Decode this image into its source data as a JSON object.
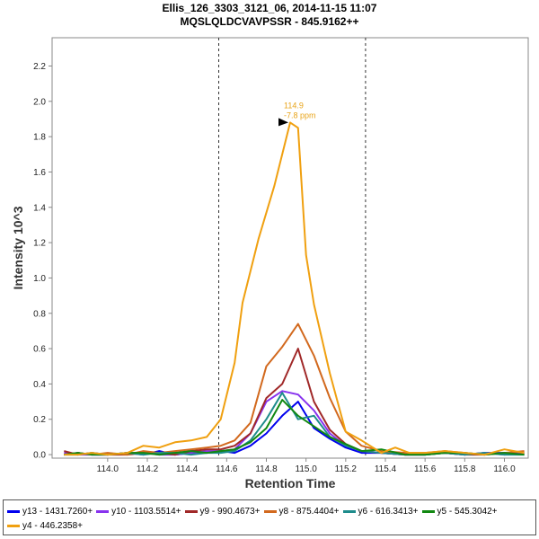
{
  "chart_data": {
    "type": "line",
    "title": "Ellis_126_3303_3121_06, 2014-11-15 11:07",
    "subtitle": "MQSLQLDCVAVPSSR - 845.9162++",
    "xlabel": "Retention Time",
    "ylabel": "Intensity 10^3",
    "xlim": [
      113.72,
      116.12
    ],
    "ylim": [
      -0.02,
      2.36
    ],
    "xticks": [
      "114.0",
      "114.2",
      "114.4",
      "114.6",
      "114.8",
      "115.0",
      "115.2",
      "115.4",
      "115.6",
      "115.8",
      "116.0"
    ],
    "yticks": [
      "0.0",
      "0.2",
      "0.4",
      "0.6",
      "0.8",
      "1.0",
      "1.2",
      "1.4",
      "1.6",
      "1.8",
      "2.0",
      "2.2"
    ],
    "grid": false,
    "legend_position": "bottom",
    "integration_bounds": [
      114.56,
      115.3
    ],
    "peak_annotation": {
      "x": 114.92,
      "y": 1.88,
      "rt_label": "114.9",
      "ppm_label": "-7.8 ppm"
    },
    "series": [
      {
        "name": "y13 - 1431.7260+",
        "color": "#0000ee",
        "x": [
          113.78,
          113.85,
          113.92,
          114.0,
          114.1,
          114.18,
          114.26,
          114.34,
          114.42,
          114.5,
          114.57,
          114.64,
          114.72,
          114.8,
          114.88,
          114.96,
          115.04,
          115.12,
          115.2,
          115.28,
          115.38,
          115.5,
          115.6,
          115.7,
          115.8,
          115.9,
          116.0,
          116.1
        ],
        "y": [
          0.0,
          0.01,
          0.0,
          0.0,
          0.01,
          0.0,
          0.02,
          0.0,
          0.01,
          0.01,
          0.02,
          0.01,
          0.05,
          0.12,
          0.22,
          0.3,
          0.15,
          0.09,
          0.04,
          0.01,
          0.01,
          0.0,
          0.0,
          0.01,
          0.0,
          0.01,
          0.01,
          0.01
        ]
      },
      {
        "name": "y10 - 1103.5514+",
        "color": "#8833ee",
        "x": [
          113.78,
          113.85,
          113.92,
          114.0,
          114.1,
          114.18,
          114.26,
          114.34,
          114.42,
          114.5,
          114.57,
          114.64,
          114.72,
          114.8,
          114.88,
          114.96,
          115.04,
          115.12,
          115.2,
          115.28,
          115.38,
          115.5,
          115.6,
          115.7,
          115.8,
          115.9,
          116.0,
          116.1
        ],
        "y": [
          0.01,
          0.0,
          0.0,
          0.0,
          0.01,
          0.01,
          0.0,
          0.0,
          0.01,
          0.02,
          0.02,
          0.03,
          0.12,
          0.3,
          0.36,
          0.34,
          0.25,
          0.12,
          0.05,
          0.02,
          0.01,
          0.0,
          0.01,
          0.01,
          0.0,
          0.01,
          0.0,
          0.01
        ]
      },
      {
        "name": "y9 - 990.4673+",
        "color": "#a02828",
        "x": [
          113.78,
          113.85,
          113.92,
          114.0,
          114.1,
          114.18,
          114.26,
          114.34,
          114.42,
          114.5,
          114.57,
          114.64,
          114.72,
          114.8,
          114.88,
          114.96,
          115.04,
          115.12,
          115.2,
          115.28,
          115.38,
          115.5,
          115.6,
          115.7,
          115.8,
          115.9,
          116.0,
          116.1
        ],
        "y": [
          0.02,
          0.0,
          0.01,
          0.0,
          0.0,
          0.01,
          0.01,
          0.0,
          0.02,
          0.03,
          0.03,
          0.05,
          0.12,
          0.32,
          0.4,
          0.6,
          0.3,
          0.14,
          0.06,
          0.02,
          0.01,
          0.0,
          0.0,
          0.01,
          0.0,
          0.0,
          0.01,
          0.0
        ]
      },
      {
        "name": "y8 - 875.4404+",
        "color": "#d2691e",
        "x": [
          113.78,
          113.85,
          113.92,
          114.0,
          114.1,
          114.18,
          114.26,
          114.34,
          114.42,
          114.5,
          114.57,
          114.64,
          114.72,
          114.8,
          114.88,
          114.96,
          115.04,
          115.12,
          115.2,
          115.28,
          115.38,
          115.5,
          115.6,
          115.7,
          115.8,
          115.9,
          116.0,
          116.1
        ],
        "y": [
          0.0,
          0.01,
          0.0,
          0.01,
          0.0,
          0.02,
          0.01,
          0.02,
          0.03,
          0.04,
          0.05,
          0.08,
          0.18,
          0.5,
          0.61,
          0.74,
          0.56,
          0.32,
          0.13,
          0.05,
          0.02,
          0.01,
          0.01,
          0.02,
          0.01,
          0.0,
          0.01,
          0.02
        ]
      },
      {
        "name": "y6 - 616.3413+",
        "color": "#1e8c8c",
        "x": [
          113.78,
          113.85,
          113.92,
          114.0,
          114.1,
          114.18,
          114.26,
          114.34,
          114.42,
          114.5,
          114.57,
          114.64,
          114.72,
          114.8,
          114.88,
          114.96,
          115.04,
          115.12,
          115.2,
          115.28,
          115.38,
          115.5,
          115.6,
          115.7,
          115.8,
          115.9,
          116.0,
          116.1
        ],
        "y": [
          0.0,
          0.0,
          0.01,
          0.0,
          0.01,
          0.0,
          0.01,
          0.01,
          0.0,
          0.01,
          0.01,
          0.02,
          0.08,
          0.2,
          0.35,
          0.2,
          0.22,
          0.1,
          0.05,
          0.02,
          0.01,
          0.0,
          0.0,
          0.01,
          0.0,
          0.01,
          0.0,
          0.0
        ]
      },
      {
        "name": "y5 - 545.3042+",
        "color": "#118811",
        "x": [
          113.78,
          113.85,
          113.92,
          114.0,
          114.1,
          114.18,
          114.26,
          114.34,
          114.42,
          114.5,
          114.57,
          114.64,
          114.72,
          114.8,
          114.88,
          114.96,
          115.04,
          115.12,
          115.2,
          115.28,
          115.38,
          115.5,
          115.6,
          115.7,
          115.8,
          115.9,
          116.0,
          116.1
        ],
        "y": [
          0.0,
          0.01,
          0.0,
          0.0,
          0.01,
          0.01,
          0.0,
          0.01,
          0.02,
          0.01,
          0.02,
          0.03,
          0.07,
          0.15,
          0.31,
          0.22,
          0.16,
          0.1,
          0.06,
          0.02,
          0.03,
          0.0,
          0.0,
          0.01,
          0.01,
          0.0,
          0.01,
          0.0
        ]
      },
      {
        "name": "y4 - 446.2358+",
        "color": "#f0a010",
        "x": [
          113.78,
          113.85,
          113.92,
          114.0,
          114.1,
          114.18,
          114.26,
          114.34,
          114.42,
          114.5,
          114.57,
          114.64,
          114.68,
          114.76,
          114.84,
          114.92,
          114.96,
          115.0,
          115.04,
          115.12,
          115.2,
          115.28,
          115.38,
          115.45,
          115.52,
          115.6,
          115.7,
          115.8,
          115.9,
          116.0,
          116.1
        ],
        "y": [
          0.0,
          0.0,
          0.01,
          0.0,
          0.01,
          0.05,
          0.04,
          0.07,
          0.08,
          0.1,
          0.2,
          0.52,
          0.86,
          1.22,
          1.52,
          1.88,
          1.85,
          1.13,
          0.85,
          0.46,
          0.13,
          0.08,
          0.01,
          0.04,
          0.01,
          0.01,
          0.02,
          0.01,
          0.0,
          0.03,
          0.01
        ]
      }
    ]
  }
}
